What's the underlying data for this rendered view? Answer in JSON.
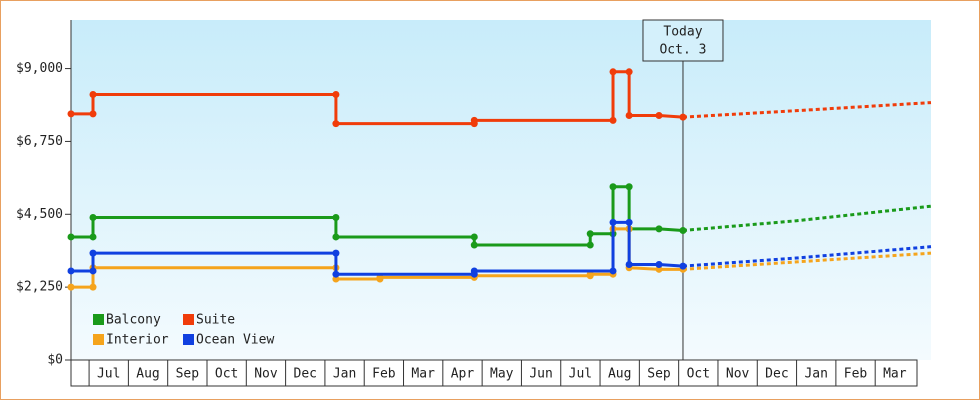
{
  "chart_data": {
    "type": "step-line",
    "ylim": [
      0,
      10500
    ],
    "yticks": [
      {
        "value": 0,
        "label": "$0"
      },
      {
        "value": 2250,
        "label": "$2,250"
      },
      {
        "value": 4500,
        "label": "$4,500"
      },
      {
        "value": 6750,
        "label": "$6,750"
      },
      {
        "value": 9000,
        "label": "$9,000"
      }
    ],
    "xlim": [
      -0.46,
      21.42
    ],
    "xticks": [
      {
        "value": 0,
        "label": "Jul"
      },
      {
        "value": 1,
        "label": "Aug"
      },
      {
        "value": 2,
        "label": "Sep"
      },
      {
        "value": 3,
        "label": "Oct"
      },
      {
        "value": 4,
        "label": "Nov"
      },
      {
        "value": 5,
        "label": "Dec"
      },
      {
        "value": 6,
        "label": "Jan"
      },
      {
        "value": 7,
        "label": "Feb"
      },
      {
        "value": 8,
        "label": "Mar"
      },
      {
        "value": 9,
        "label": "Apr"
      },
      {
        "value": 10,
        "label": "May"
      },
      {
        "value": 11,
        "label": "Jun"
      },
      {
        "value": 12,
        "label": "Jul"
      },
      {
        "value": 13,
        "label": "Aug"
      },
      {
        "value": 14,
        "label": "Sep"
      },
      {
        "value": 15,
        "label": "Oct"
      },
      {
        "value": 16,
        "label": "Nov"
      },
      {
        "value": 17,
        "label": "Dec"
      },
      {
        "value": 18,
        "label": "Jan"
      },
      {
        "value": 19,
        "label": "Feb"
      },
      {
        "value": 20,
        "label": "Mar"
      }
    ],
    "annotation": {
      "x": 15.11,
      "lines": [
        "Today",
        "Oct. 3"
      ]
    },
    "legend": "bottom-left",
    "series": [
      {
        "name": "Balcony",
        "color": "#1a9a1a",
        "x": [
          -0.46,
          0.1,
          0.1,
          6.28,
          6.28,
          9.8,
          9.8,
          12.75,
          12.75,
          13.33,
          13.33,
          13.74,
          13.74,
          14.5,
          15.11
        ],
        "values": [
          3800,
          3800,
          4400,
          4400,
          3800,
          3800,
          3550,
          3550,
          3900,
          3900,
          5350,
          5350,
          4050,
          4050,
          4000
        ],
        "forecast": {
          "x": [
            15.11,
            18,
            21.42
          ],
          "values": [
            4000,
            4300,
            4750
          ]
        }
      },
      {
        "name": "Suite",
        "color": "#f03c0a",
        "x": [
          -0.46,
          0.1,
          0.1,
          6.28,
          6.28,
          9.8,
          9.8,
          13.33,
          13.33,
          13.74,
          13.74,
          14.5,
          15.11
        ],
        "values": [
          7600,
          7600,
          8200,
          8200,
          7300,
          7300,
          7400,
          7400,
          8900,
          8900,
          7550,
          7550,
          7500
        ],
        "forecast": {
          "x": [
            15.11,
            18,
            21.42
          ],
          "values": [
            7500,
            7700,
            7950
          ]
        }
      },
      {
        "name": "Interior",
        "color": "#f5a41c",
        "x": [
          -0.46,
          0.1,
          0.1,
          6.28,
          6.28,
          7.4,
          7.4,
          9.8,
          9.8,
          12.75,
          12.75,
          13.33,
          13.33,
          13.74,
          13.74,
          14.5,
          15.11
        ],
        "values": [
          2250,
          2250,
          2850,
          2850,
          2500,
          2500,
          2550,
          2550,
          2600,
          2600,
          2650,
          2650,
          4050,
          4050,
          2850,
          2800,
          2800
        ],
        "forecast": {
          "x": [
            15.11,
            18,
            21.42
          ],
          "values": [
            2800,
            3030,
            3300
          ]
        }
      },
      {
        "name": "Ocean View",
        "color": "#1040e0",
        "x": [
          -0.46,
          0.1,
          0.1,
          6.28,
          6.28,
          9.8,
          9.8,
          13.33,
          13.33,
          13.74,
          13.74,
          14.5,
          15.11
        ],
        "values": [
          2750,
          2750,
          3300,
          3300,
          2650,
          2650,
          2750,
          2750,
          4250,
          4250,
          2950,
          2950,
          2900
        ],
        "forecast": {
          "x": [
            15.11,
            18,
            21.42
          ],
          "values": [
            2900,
            3150,
            3500
          ]
        }
      }
    ]
  }
}
